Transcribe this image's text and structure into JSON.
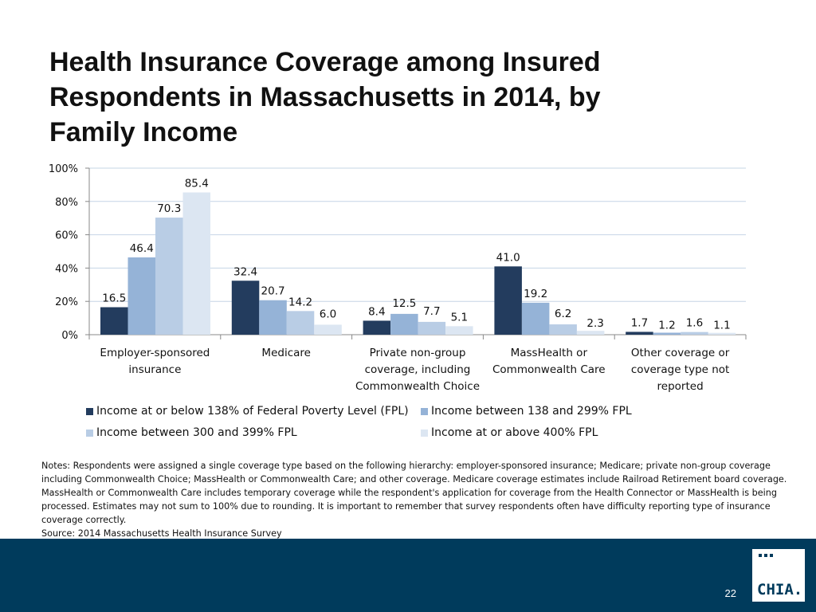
{
  "title": "Health Insurance Coverage among Insured Respondents in Massachusetts in 2014, by Family Income",
  "colors": [
    "#233c5e",
    "#95b3d7",
    "#b9cde5",
    "#dce6f2"
  ],
  "chart_data": {
    "type": "bar",
    "title": "Health Insurance Coverage among Insured Respondents in Massachusetts in 2014, by Family Income",
    "xlabel": "",
    "ylabel": "",
    "ylim": [
      0,
      100
    ],
    "y_ticks": [
      "0%",
      "20%",
      "40%",
      "60%",
      "80%",
      "100%"
    ],
    "grid": true,
    "legend_position": "bottom",
    "categories": [
      [
        "Employer-sponsored",
        "insurance"
      ],
      [
        "Medicare"
      ],
      [
        "Private non-group",
        "coverage, including",
        "Commonwealth Choice"
      ],
      [
        "MassHealth or",
        "Commonwealth Care"
      ],
      [
        "Other coverage or",
        "coverage type not",
        "reported"
      ]
    ],
    "series": [
      {
        "name": "Income at or below 138% of Federal Poverty Level (FPL)",
        "values": [
          16.5,
          32.4,
          8.4,
          41.0,
          1.7
        ],
        "labels": [
          "16.5",
          "32.4",
          "8.4",
          "41.0",
          "1.7"
        ]
      },
      {
        "name": "Income between 138 and 299% FPL",
        "values": [
          46.4,
          20.7,
          12.5,
          19.2,
          1.2
        ],
        "labels": [
          "46.4",
          "20.7",
          "12.5",
          "19.2",
          "1.2"
        ]
      },
      {
        "name": "Income between 300 and 399% FPL",
        "values": [
          70.3,
          14.2,
          7.7,
          6.2,
          1.6
        ],
        "labels": [
          "70.3",
          "14.2",
          "7.7",
          "6.2",
          "1.6"
        ]
      },
      {
        "name": "Income at or above 400% FPL",
        "values": [
          85.4,
          6.0,
          5.1,
          2.3,
          1.1
        ],
        "labels": [
          "85.4",
          "6.0",
          "5.1",
          "2.3",
          "1.1"
        ]
      }
    ]
  },
  "notes": {
    "text": "Notes: Respondents were assigned a single coverage type based on the following hierarchy: employer-sponsored insurance; Medicare; private non-group coverage including Commonwealth Choice; MassHealth or Commonwealth Care; and other coverage. Medicare coverage estimates include Railroad Retirement board coverage. MassHealth or Commonwealth Care includes temporary coverage while the respondent's application for coverage from the Health Connector or MassHealth is being processed. Estimates may not sum to 100% due to rounding. It is important to remember that survey respondents often have difficulty reporting type of insurance coverage correctly.",
    "source": "Source:  2014 Massachusetts Health Insurance Survey"
  },
  "footer": {
    "page_number": "22",
    "logo_text": "CHIA."
  }
}
